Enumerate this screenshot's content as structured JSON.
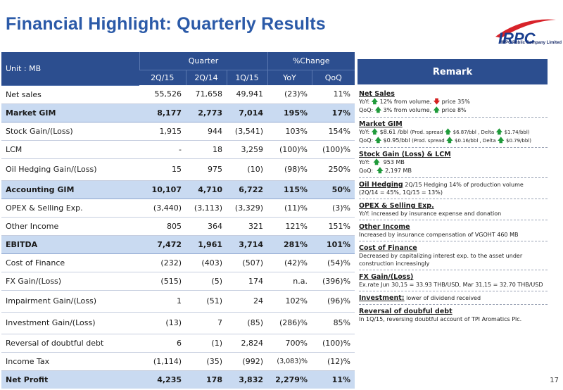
{
  "title": "Financial Highlight: Quarterly Results",
  "page_number": "17",
  "logo": {
    "wordmark": "IRPC",
    "tagline": "IRPC Public Company Limited"
  },
  "table": {
    "unit": "Unit : MB",
    "quarter_header": "Quarter",
    "change_header": "%Change",
    "columns": [
      "2Q/15",
      "2Q/14",
      "1Q/15",
      "YoY",
      "QoQ"
    ],
    "rows": [
      {
        "label": "Net sales",
        "values": [
          "55,526",
          "71,658",
          "49,941",
          "(23)%",
          "11%"
        ]
      },
      {
        "label": "Market GIM",
        "values": [
          "8,177",
          "2,773",
          "7,014",
          "195%",
          "17%"
        ]
      },
      {
        "label": "Stock Gain/(Loss)",
        "values": [
          "1,915",
          "944",
          "(3,541)",
          "103%",
          "154%"
        ]
      },
      {
        "label": "LCM",
        "values": [
          "-",
          "18",
          "3,259",
          "(100)%",
          "(100)%"
        ]
      },
      {
        "label": "Oil Hedging Gain/(Loss)",
        "values": [
          "15",
          "975",
          "(10)",
          "(98)%",
          "250%"
        ]
      },
      {
        "label": "Accounting GIM",
        "values": [
          "10,107",
          "4,710",
          "6,722",
          "115%",
          "50%"
        ]
      },
      {
        "label": "OPEX & Selling Exp.",
        "values": [
          "(3,440)",
          "(3,113)",
          "(3,329)",
          "(11)%",
          "(3)%"
        ]
      },
      {
        "label": "Other Income",
        "values": [
          "805",
          "364",
          "321",
          "121%",
          "151%"
        ]
      },
      {
        "label": "EBITDA",
        "values": [
          "7,472",
          "1,961",
          "3,714",
          "281%",
          "101%"
        ]
      },
      {
        "label": "Cost of Finance",
        "values": [
          "(232)",
          "(403)",
          "(507)",
          "(42)%",
          "(54)%"
        ]
      },
      {
        "label": "FX Gain/(Loss)",
        "values": [
          "(515)",
          "(5)",
          "174",
          "n.a.",
          "(396)%"
        ]
      },
      {
        "label": "Impairment Gain/(Loss)",
        "values": [
          "1",
          "(51)",
          "24",
          "102%",
          "(96)%"
        ]
      },
      {
        "label": "Investment Gain/(Loss)",
        "values": [
          "(13)",
          "7",
          "(85)",
          "(286)%",
          "85%"
        ]
      },
      {
        "label": "Reversal of doubtful debt",
        "values": [
          "6",
          "(1)",
          "2,824",
          "700%",
          "(100)%"
        ]
      },
      {
        "label": "Income Tax",
        "values": [
          "(1,114)",
          "(35)",
          "(992)",
          "(3,083)%",
          "(12)%"
        ]
      },
      {
        "label": "Net Profit",
        "values": [
          "4,235",
          "178",
          "3,832",
          "2,279%",
          "11%"
        ]
      }
    ]
  },
  "remark": {
    "header": "Remark",
    "net_sales": {
      "title": "Net Sales",
      "yoy_a": "YoY:",
      "yoy_b": "12% from volume,",
      "yoy_c": "price 35%",
      "qoq_a": "QoQ:",
      "qoq_b": "3% from volume,",
      "qoq_c": "price 8%"
    },
    "market_gim": {
      "title": "Market GIM",
      "yoy_a": "YoY:",
      "yoy_b": "$8.61 /bbl",
      "yoy_c": "(Prod. spread",
      "yoy_d": "$6.87/bbl , Delta",
      "yoy_e": "$1.74/bbl)",
      "qoq_a": "QoQ:",
      "qoq_b": "$0.95/bbl",
      "qoq_c": "(Prod. spread",
      "qoq_d": "$0.16/bbl , Delta",
      "qoq_e": "$0.79/bbl)"
    },
    "stock": {
      "title": "Stock Gain (Loss) & LCM",
      "yoy_a": "YoY:",
      "yoy_b": "953 MB",
      "qoq_a": "QoQ:",
      "qoq_b": "2,197 MB"
    },
    "hedging": {
      "title": "Oil Hedging",
      "text": "2Q/15  Hedging 14% of production volume",
      "line2": "(2Q/14 = 45%, 1Q/15 = 13%)"
    },
    "opex": {
      "title": "OPEX & Selling Exp.",
      "text": "YoY:  increased by insurance expense and donation"
    },
    "other_income": {
      "title": "Other Income",
      "text": "Increased by insurance compensation of VGOHT 460 MB"
    },
    "cost_finance": {
      "title": "Cost of Finance",
      "text": "Decreased by capitalizing interest exp. to the asset under construction increasingly"
    },
    "fx": {
      "title": "FX Gain/(Loss)",
      "text": "Ex.rate  Jun 30,15 = 33.93 THB/USD, Mar 31,15 = 32.70 THB/USD"
    },
    "investment": {
      "title": "Investment:",
      "text": "lower of dividend received"
    },
    "reversal": {
      "title": "Reversal of doubful debt",
      "text": "In 1Q/15, reversing doubtful account of TPI Aromatics Plc."
    }
  }
}
